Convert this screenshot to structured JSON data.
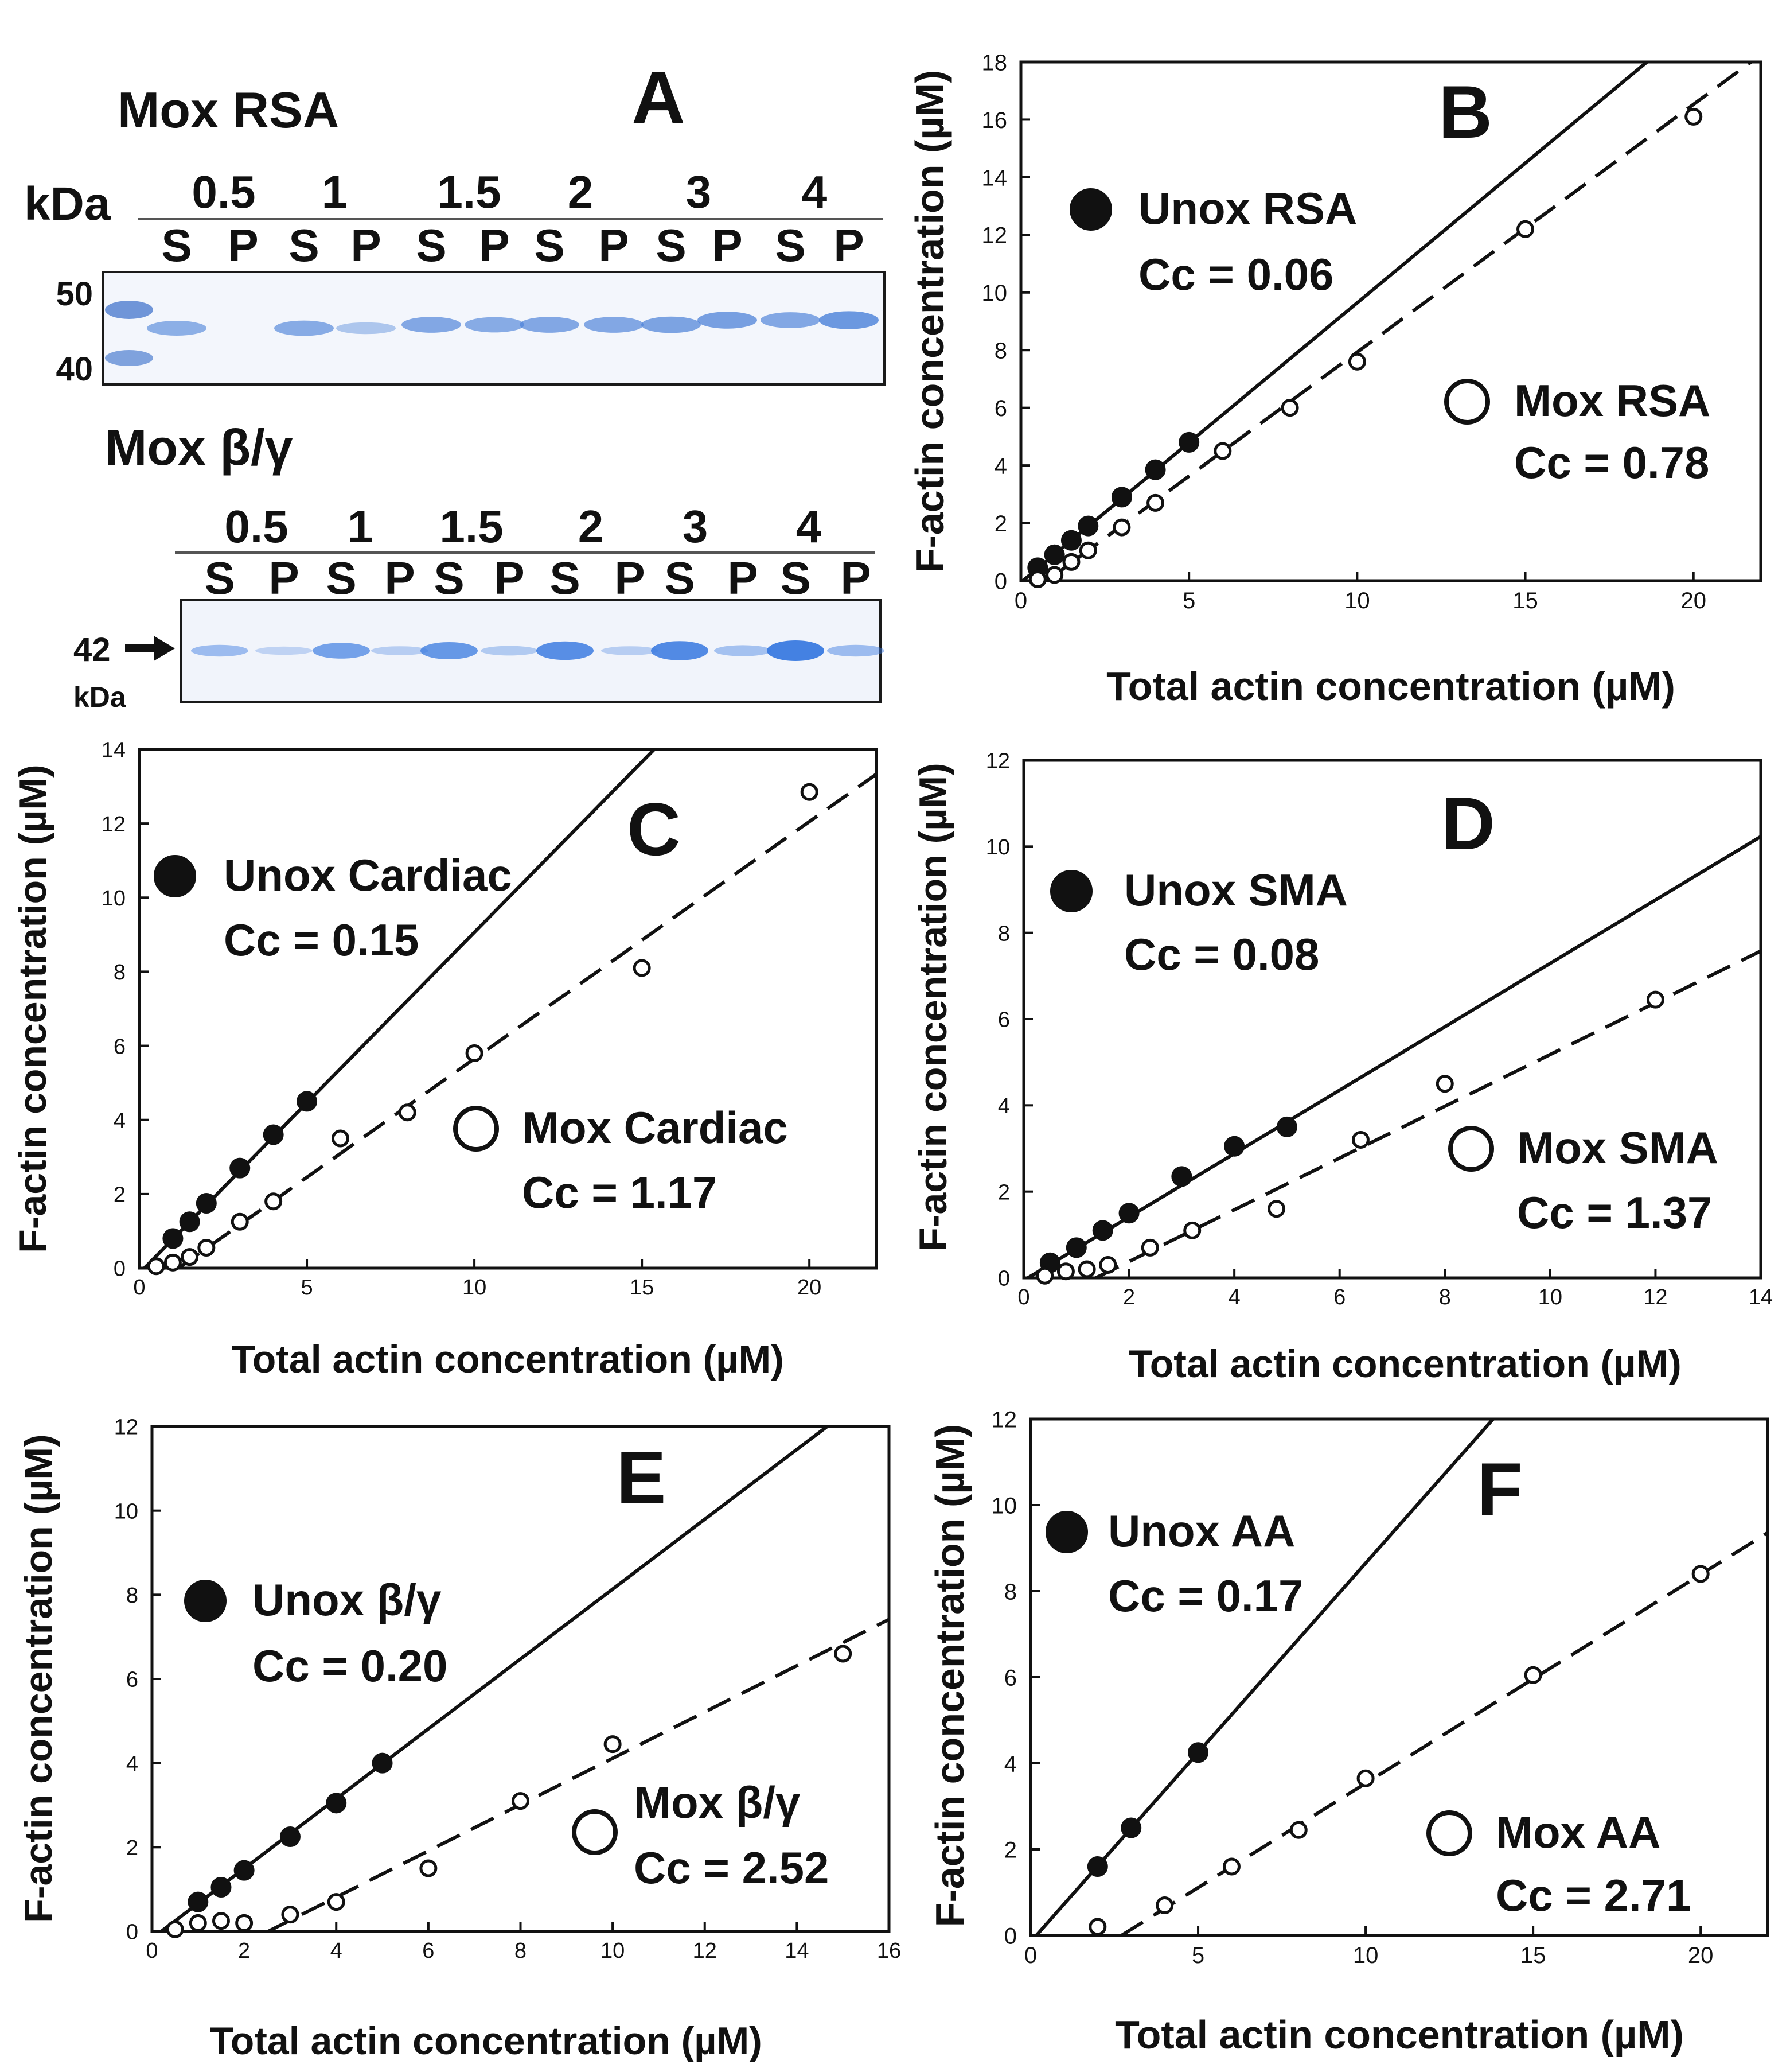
{
  "panel_a": {
    "letter": "A",
    "top": {
      "title": "Mox RSA",
      "kda_label": "kDa",
      "conc_labels": [
        "0.5",
        "1",
        "1.5",
        "2",
        "3",
        "4"
      ],
      "lane_labels": [
        "S",
        "P",
        "S",
        "P",
        "S",
        "P",
        "S",
        "P",
        "S",
        "P",
        "S",
        "P"
      ],
      "markers": [
        "50",
        "40"
      ],
      "band_intensity": [
        0.55,
        0.0,
        0.6,
        0.25,
        0.65,
        0.6,
        0.65,
        0.65,
        0.7,
        0.75,
        0.65,
        0.85
      ]
    },
    "bottom": {
      "title": "Mox β/γ",
      "conc_labels": [
        "0.5",
        "1",
        "1.5",
        "2",
        "3",
        "4"
      ],
      "lane_labels": [
        "S",
        "P",
        "S",
        "P",
        "S",
        "P",
        "S",
        "P",
        "S",
        "P",
        "S",
        "P"
      ],
      "marker": "42",
      "kda_label": "kDa",
      "band_intensity": [
        0.35,
        0.1,
        0.65,
        0.15,
        0.75,
        0.2,
        0.85,
        0.15,
        0.9,
        0.3,
        1.0,
        0.35
      ]
    }
  },
  "chart_data": [
    {
      "id": "B",
      "type": "scatter",
      "xlabel": "Total actin concentration (µM)",
      "ylabel": "F-actin concentration (µM)",
      "xlim": [
        0,
        22
      ],
      "ylim": [
        0,
        18
      ],
      "xticks": [
        0,
        5,
        10,
        15,
        20
      ],
      "yticks": [
        0,
        2,
        4,
        6,
        8,
        10,
        12,
        14,
        16,
        18
      ],
      "series": [
        {
          "name": "Unox RSA",
          "cc_label": "Cc = 0.06",
          "marker": "filled",
          "line": "solid",
          "cc": 0.06,
          "slope": 0.97,
          "x": [
            0.5,
            1,
            1.5,
            2,
            3,
            4,
            5
          ],
          "y": [
            0.45,
            0.9,
            1.4,
            1.9,
            2.9,
            3.85,
            4.8
          ]
        },
        {
          "name": "Mox RSA",
          "cc_label": "Cc = 0.78",
          "marker": "open",
          "line": "dashed",
          "cc": 0.78,
          "slope": 0.86,
          "x": [
            0.5,
            1,
            1.5,
            2,
            3,
            4,
            6,
            8,
            10,
            15,
            20
          ],
          "y": [
            0.05,
            0.2,
            0.65,
            1.05,
            1.85,
            2.7,
            4.5,
            6.0,
            7.6,
            12.2,
            16.1
          ]
        }
      ]
    },
    {
      "id": "C",
      "type": "scatter",
      "xlabel": "Total actin concentration (µM)",
      "ylabel": "F-actin concentration (µM)",
      "xlim": [
        0,
        22
      ],
      "ylim": [
        0,
        14
      ],
      "xticks": [
        0,
        5,
        10,
        15,
        20
      ],
      "yticks": [
        0,
        2,
        4,
        6,
        8,
        10,
        12,
        14
      ],
      "series": [
        {
          "name": "Unox Cardiac",
          "cc_label": "Cc = 0.15",
          "marker": "filled",
          "line": "solid",
          "cc": 0.15,
          "slope": 0.92,
          "x": [
            1,
            1.5,
            2,
            3,
            4,
            5
          ],
          "y": [
            0.8,
            1.25,
            1.75,
            2.7,
            3.6,
            4.5
          ]
        },
        {
          "name": "Mox Cardiac",
          "cc_label": "Cc = 1.17",
          "marker": "open",
          "line": "dashed",
          "cc": 1.17,
          "slope": 0.64,
          "x": [
            0.5,
            1,
            1.5,
            2,
            3,
            4,
            6,
            8,
            10,
            15,
            20
          ],
          "y": [
            0.05,
            0.15,
            0.3,
            0.55,
            1.25,
            1.8,
            3.5,
            4.2,
            5.8,
            8.1,
            12.85
          ]
        }
      ]
    },
    {
      "id": "D",
      "type": "scatter",
      "xlabel": "Total actin concentration (µM)",
      "ylabel": "F-actin concentration (µM)",
      "xlim": [
        0,
        14
      ],
      "ylim": [
        0,
        12
      ],
      "xticks": [
        0,
        2,
        4,
        6,
        8,
        10,
        12,
        14
      ],
      "yticks": [
        0,
        2,
        4,
        6,
        8,
        10,
        12
      ],
      "series": [
        {
          "name": "Unox SMA",
          "cc_label": "Cc = 0.08",
          "marker": "filled",
          "line": "solid",
          "cc": 0.08,
          "slope": 0.735,
          "x": [
            0.5,
            1,
            1.5,
            2,
            3,
            4,
            5
          ],
          "y": [
            0.35,
            0.7,
            1.1,
            1.5,
            2.35,
            3.05,
            3.5
          ]
        },
        {
          "name": "Mox SMA",
          "cc_label": "Cc = 1.37",
          "marker": "open",
          "line": "dashed",
          "cc": 1.37,
          "slope": 0.6,
          "x": [
            0.4,
            0.8,
            1.2,
            1.6,
            2.4,
            3.2,
            4.8,
            6.4,
            8,
            12
          ],
          "y": [
            0.05,
            0.15,
            0.2,
            0.3,
            0.7,
            1.1,
            1.6,
            3.2,
            4.5,
            6.45
          ]
        }
      ]
    },
    {
      "id": "E",
      "type": "scatter",
      "xlabel": "Total actin concentration (µM)",
      "ylabel": "F-actin concentration (µM)",
      "xlim": [
        0,
        16
      ],
      "ylim": [
        0,
        12
      ],
      "xticks": [
        0,
        2,
        4,
        6,
        8,
        10,
        12,
        14,
        16
      ],
      "yticks": [
        0,
        2,
        4,
        6,
        8,
        10,
        12
      ],
      "series": [
        {
          "name": "Unox β/γ",
          "cc_label": "Cc = 0.20",
          "marker": "filled",
          "line": "solid",
          "cc": 0.2,
          "slope": 0.83,
          "x": [
            1,
            1.5,
            2,
            3,
            4,
            5
          ],
          "y": [
            0.7,
            1.05,
            1.45,
            2.25,
            3.05,
            4.0
          ]
        },
        {
          "name": "Mox β/γ",
          "cc_label": "Cc = 2.52",
          "marker": "open",
          "line": "dashed",
          "cc": 2.52,
          "slope": 0.55,
          "x": [
            0.5,
            1,
            1.5,
            2,
            3,
            4,
            6,
            8,
            10,
            15
          ],
          "y": [
            0.05,
            0.2,
            0.25,
            0.2,
            0.4,
            0.7,
            1.5,
            3.1,
            4.45,
            6.6
          ]
        }
      ]
    },
    {
      "id": "F",
      "type": "scatter",
      "xlabel": "Total actin concentration (µM)",
      "ylabel": "F-actin concentration (µM)",
      "xlim": [
        0,
        22
      ],
      "ylim": [
        0,
        12
      ],
      "xticks": [
        0,
        5,
        10,
        15,
        20
      ],
      "yticks": [
        0,
        2,
        4,
        6,
        8,
        10,
        12
      ],
      "series": [
        {
          "name": "Unox AA",
          "cc_label": "Cc = 0.17",
          "marker": "filled",
          "line": "solid",
          "cc": 0.17,
          "slope": 0.88,
          "x": [
            2,
            3,
            5
          ],
          "y": [
            1.6,
            2.5,
            4.25
          ]
        },
        {
          "name": "Mox AA",
          "cc_label": "Cc = 2.71",
          "marker": "open",
          "line": "dashed",
          "cc": 2.71,
          "slope": 0.485,
          "x": [
            2,
            4,
            6,
            8,
            10,
            15,
            20
          ],
          "y": [
            0.2,
            0.7,
            1.6,
            2.45,
            3.65,
            6.05,
            8.4
          ]
        }
      ]
    }
  ]
}
